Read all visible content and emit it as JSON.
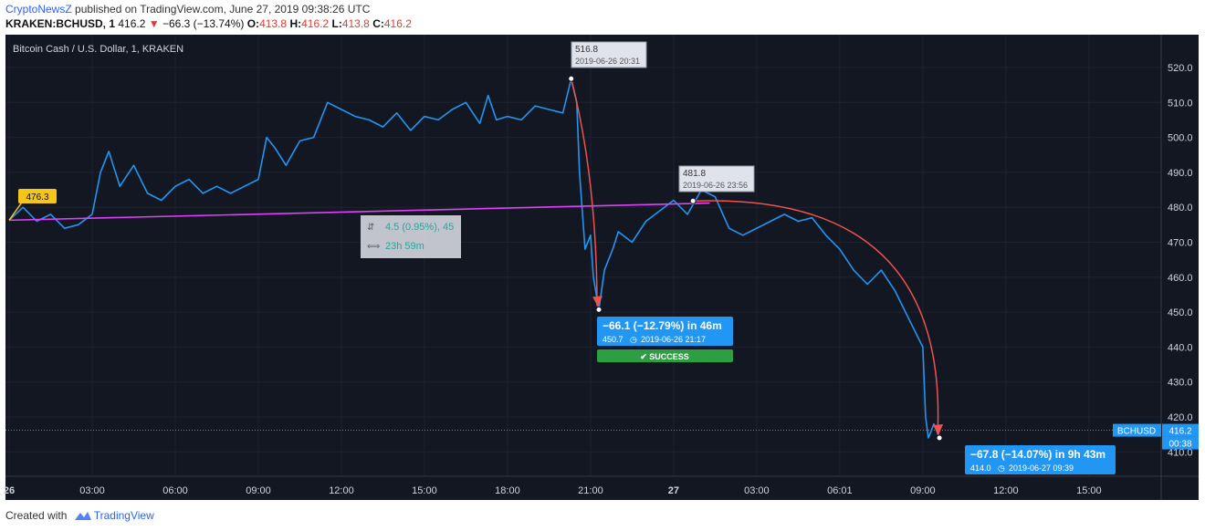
{
  "header": {
    "publisher": "CryptoNewsZ",
    "published_text": "published on TradingView.com, June 27, 2019 09:38:26 UTC",
    "symbol": "KRAKEN:BCHUSD, 1",
    "last": "416.2",
    "change": "−66.3 (−13.74%)",
    "o_label": "O:",
    "o_value": "413.8",
    "h_label": "H:",
    "h_value": "416.2",
    "l_label": "L:",
    "l_value": "413.8",
    "c_label": "C:",
    "c_value": "416.2"
  },
  "chart_title": "Bitcoin Cash / U.S. Dollar, 1, KRAKEN",
  "footer": {
    "created_with": "Created with",
    "brand": "TradingView"
  },
  "colors": {
    "background": "#131722",
    "line": "#2196f3",
    "trend": "#e040fb",
    "arc": "#ef5350",
    "axis_text": "#d1d4dc"
  },
  "chart_data": {
    "type": "line",
    "x_unit": "hours since 2019-06-26 00:00 UTC",
    "ylim": [
      408,
      526
    ],
    "y_ticks": [
      "410.0",
      "420.0",
      "430.0",
      "440.0",
      "450.0",
      "460.0",
      "470.0",
      "480.0",
      "490.0",
      "500.0",
      "510.0",
      "520.0"
    ],
    "x_ticks": [
      {
        "x": 0,
        "label": "26"
      },
      {
        "x": 3,
        "label": "03:00"
      },
      {
        "x": 6,
        "label": "06:00"
      },
      {
        "x": 9,
        "label": "09:00"
      },
      {
        "x": 12,
        "label": "12:00"
      },
      {
        "x": 15,
        "label": "15:00"
      },
      {
        "x": 18,
        "label": "18:00"
      },
      {
        "x": 21,
        "label": "21:00"
      },
      {
        "x": 24,
        "label": "27"
      },
      {
        "x": 27,
        "label": "03:00"
      },
      {
        "x": 30,
        "label": "06:01"
      },
      {
        "x": 33,
        "label": "09:00"
      },
      {
        "x": 36,
        "label": "12:00"
      },
      {
        "x": 39,
        "label": "15:00"
      }
    ],
    "series": [
      {
        "name": "BCHUSD",
        "x": [
          0,
          0.5,
          1,
          1.5,
          2,
          2.5,
          3,
          3.3,
          3.6,
          4,
          4.5,
          5,
          5.5,
          6,
          6.5,
          7,
          7.5,
          8,
          8.5,
          9,
          9.3,
          9.6,
          10,
          10.5,
          11,
          11.5,
          12,
          12.5,
          13,
          13.5,
          14,
          14.5,
          15,
          15.5,
          16,
          16.5,
          17,
          17.3,
          17.6,
          18,
          18.5,
          19,
          19.5,
          20,
          20.3,
          20.5,
          20.6,
          20.8,
          21,
          21.1,
          21.3,
          21.5,
          21.8,
          22,
          22.5,
          23,
          23.5,
          24,
          24.5,
          25,
          25.5,
          26,
          26.5,
          27,
          27.5,
          28,
          28.5,
          29,
          29.5,
          30,
          30.5,
          31,
          31.5,
          32,
          32.5,
          33,
          33.1,
          33.2,
          33.4,
          33.6
        ],
        "y": [
          476.3,
          480,
          476,
          478,
          474,
          475,
          478,
          490,
          496,
          486,
          492,
          484,
          482,
          486,
          488,
          484,
          486,
          484,
          486,
          488,
          500,
          497,
          492,
          499,
          500,
          510,
          508,
          506,
          505,
          503,
          507,
          502,
          506,
          505,
          508,
          510,
          504,
          512,
          505,
          506,
          505,
          509,
          508,
          507,
          516.8,
          510,
          490,
          468,
          472,
          460,
          450.7,
          462,
          468,
          473,
          470,
          476,
          479,
          482,
          478,
          485,
          483,
          474,
          472,
          474,
          476,
          478,
          476,
          477,
          472,
          468,
          462,
          458,
          462,
          456,
          448,
          440,
          420,
          414,
          418,
          414.0
        ]
      }
    ],
    "last_price_label": "BCHUSD",
    "last_price": "416.2",
    "countdown": "00:38",
    "annotations": {
      "start_badge": "476.3",
      "peak1_price": "516.8",
      "peak1_time": "2019-06-26 20:31",
      "peak2_price": "481.8",
      "peak2_time": "2019-06-26 23:56",
      "measure_change": "4.5 (0.95%), 45",
      "measure_range": "23h 59m",
      "drop1_title": "−66.1 (−12.79%) in 46m",
      "drop1_price": "450.7",
      "drop1_time": "2019-06-26  21:17",
      "success": "✔ SUCCESS",
      "drop2_title": "−67.8 (−14.07%) in 9h 43m",
      "drop2_price": "414.0",
      "drop2_time": "2019-06-27  09:39"
    }
  }
}
